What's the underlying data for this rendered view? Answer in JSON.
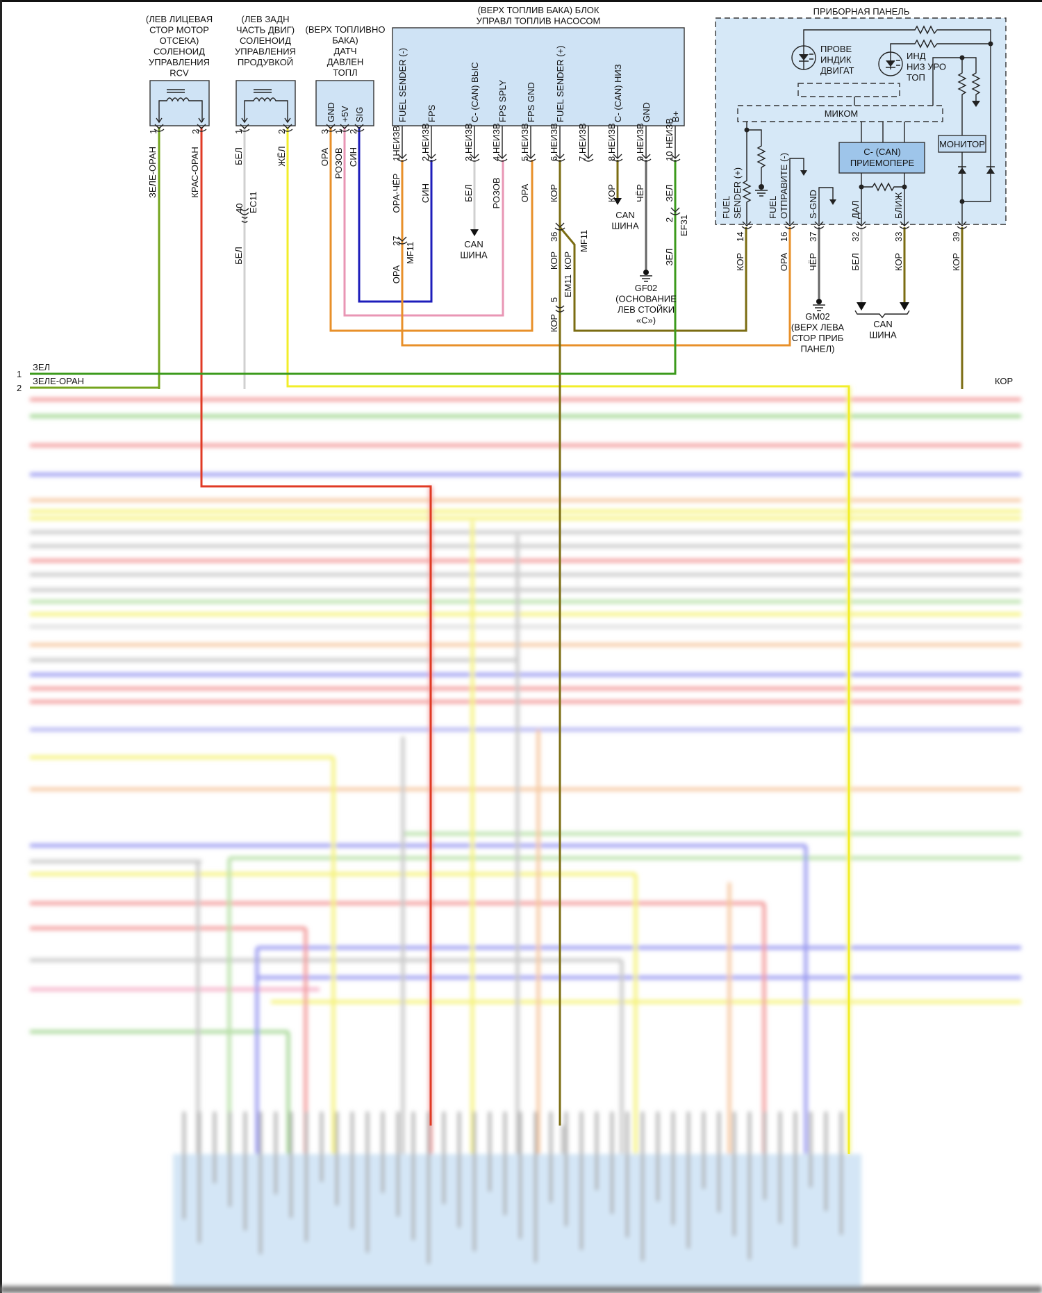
{
  "colors": {
    "green": "#3c9a1c",
    "green_orange": "#74a41e",
    "red_orange": "#e03a24",
    "white": "#cfcfcf",
    "yellow": "#f2ee2a",
    "orange": "#e8902a",
    "pink": "#e996b4",
    "blue": "#1d1dbb",
    "brown": "#7b6c12",
    "black": "#555555",
    "component_fill": "#cfe3f5"
  },
  "rcv": {
    "title": [
      "(ЛЕВ ЛИЦЕВАЯ",
      "СТОР МОТОР",
      "ОТСЕКА)",
      "СОЛЕНОИД",
      "УПРАВЛЕНИЯ",
      "RCV"
    ],
    "pins": [
      {
        "num": "1",
        "wire": "ЗЕЛЕ-ОРАН"
      },
      {
        "num": "2",
        "wire": "КРАС-ОРАН"
      }
    ]
  },
  "purge": {
    "title": [
      "(ЛЕВ ЗАДН",
      "ЧАСТЬ ДВИГ)",
      "СОЛЕНОИД",
      "УПРАВЛЕНИЯ",
      "ПРОДУВКОЙ"
    ],
    "pins": [
      {
        "num": "1",
        "wire": "БЕЛ"
      },
      {
        "num": "2",
        "wire": "ЖЁЛ"
      }
    ],
    "connector": {
      "num": "40",
      "name": "EC11",
      "wire_after": "БЕЛ"
    }
  },
  "pressure_sensor": {
    "title": [
      "(ВЕРХ ТОПЛИВНО",
      "БАКА)",
      "ДАТЧ",
      "ДАВЛЕН",
      "ТОПЛ"
    ],
    "pins": [
      {
        "label": "GND",
        "num": "3",
        "wire": "ОРА"
      },
      {
        "label": "+5V",
        "num": "1",
        "wire": "РОЗОВ"
      },
      {
        "label": "SIG",
        "num": "2",
        "wire": "СИН"
      }
    ]
  },
  "pump": {
    "title": [
      "(ВЕРХ ТОПЛИВ БАКА) БЛОК",
      "УПРАВЛ ТОПЛИВ НАСОСОМ"
    ],
    "pins": [
      {
        "label": "FUEL SENDER (-)",
        "num": "1НЕИЗВ",
        "wire": "ОРА-ЧЁР"
      },
      {
        "label": "FPS",
        "num": "2 НЕИЗВ",
        "wire": "СИН"
      },
      {
        "label": "C- (CAN) ВЫС",
        "num": "3 НЕИЗВ",
        "wire": "БЕЛ"
      },
      {
        "label": "FPS SPLY",
        "num": "4 НЕИЗВ",
        "wire": "РОЗОВ"
      },
      {
        "label": "FPS GND",
        "num": "5 НЕИЗВ",
        "wire": "ОРА"
      },
      {
        "label": "FUEL SENDER (+)",
        "num": "6 НЕИЗВ",
        "wire": "КОР"
      },
      {
        "label": "",
        "num": "7 НЕИЗВ",
        "wire": ""
      },
      {
        "label": "C- (CAN) НИЗ",
        "num": "8 НЕИЗВ",
        "wire": "КОР"
      },
      {
        "label": "GND",
        "num": "9 НЕИЗВ",
        "wire": "ЧЁР"
      },
      {
        "label": "B+",
        "num": "10 НЕИЗВ",
        "wire": "ЗЕЛ"
      }
    ],
    "mf11_a": {
      "num": "27",
      "name": "MF11",
      "wire_after": "ОРА"
    },
    "mf11_b": {
      "num": "36",
      "name": "MF11",
      "wire_left": "КОР",
      "wire_right": "КОР"
    },
    "em11": {
      "num": "5",
      "name": "EM11",
      "wire_after": "КОР"
    },
    "ef31": {
      "num": "2",
      "name": "EF31",
      "wire_after": "ЗЕЛ"
    },
    "can_bus_1": [
      "CAN",
      "ШИНА"
    ],
    "can_bus_2": [
      "CAN",
      "ШИНА"
    ],
    "ground": [
      "GF02",
      "(ОСНОВАНИЕ",
      "ЛЕВ СТОЙКИ",
      "«С»)"
    ]
  },
  "cluster": {
    "title": "ПРИБОРНАЯ ПАНЕЛЬ",
    "led1": [
      "ПРОВЕ",
      "ИНДИК",
      "ДВИГАТ"
    ],
    "led2": [
      "ИНД",
      "НИЗ УРО",
      "ТОП"
    ],
    "micom": "МИКОМ",
    "transceiver": [
      "C- (CAN)",
      "ПРИЕМОПЕРЕ"
    ],
    "monitor": "МОНИТОР",
    "pin_labels": {
      "fuel_sender": [
        "FUEL",
        "SENDER (+)"
      ],
      "fuel_sender_neg": [
        "FUEL",
        "ОТПРАВИТЕ (-)"
      ],
      "sgnd": "S-GND",
      "high": "ДАЛ",
      "low": "БЛИЖ"
    },
    "pins": [
      {
        "num": "14",
        "wire": "КОР"
      },
      {
        "num": "16",
        "wire": "ОРА"
      },
      {
        "num": "37",
        "wire": "ЧЁР"
      },
      {
        "num": "32",
        "wire": "БЕЛ"
      },
      {
        "num": "33",
        "wire": "КОР"
      },
      {
        "num": "39",
        "wire": "КОР"
      }
    ],
    "ground": [
      "GM02",
      "(ВЕРХ ЛЕВА",
      "СТОР ПРИБ",
      "ПАНЕЛ)"
    ],
    "can_bus": [
      "CAN",
      "ШИНА"
    ]
  },
  "rows": {
    "row1_num": "1",
    "row1_wire": "ЗЕЛ",
    "row2_num": "2",
    "row2_wire": "ЗЕЛЕ-ОРАН",
    "right_wire": "КОР"
  }
}
